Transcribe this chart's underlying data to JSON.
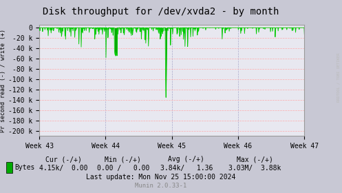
{
  "title": "Disk throughput for /dev/xvda2 - by month",
  "ylabel": "Pr second read (-) / write (+)",
  "xlabel_ticks": [
    "Week 43",
    "Week 44",
    "Week 45",
    "Week 46",
    "Week 47"
  ],
  "ylim": [
    -210000,
    5000
  ],
  "yticks": [
    0,
    -20000,
    -40000,
    -60000,
    -80000,
    -100000,
    -120000,
    -140000,
    -160000,
    -180000,
    -200000
  ],
  "ytick_labels": [
    "0",
    "-20 k",
    "-40 k",
    "-60 k",
    "-80 k",
    "-100 k",
    "-120 k",
    "-140 k",
    "-160 k",
    "-180 k",
    "-200 k"
  ],
  "bg_color": "#e8e8f0",
  "outer_bg_color": "#c8c8d4",
  "line_color": "#00cc00",
  "fill_color": "#00aa00",
  "grid_color_h": "#ffaaaa",
  "grid_color_v": "#aaaacc",
  "title_fontsize": 10,
  "axis_fontsize": 7,
  "footer_fontsize": 7,
  "side_text": "RRDTOOL / TOBI OETIKER",
  "num_points": 900,
  "random_seed": 12345
}
